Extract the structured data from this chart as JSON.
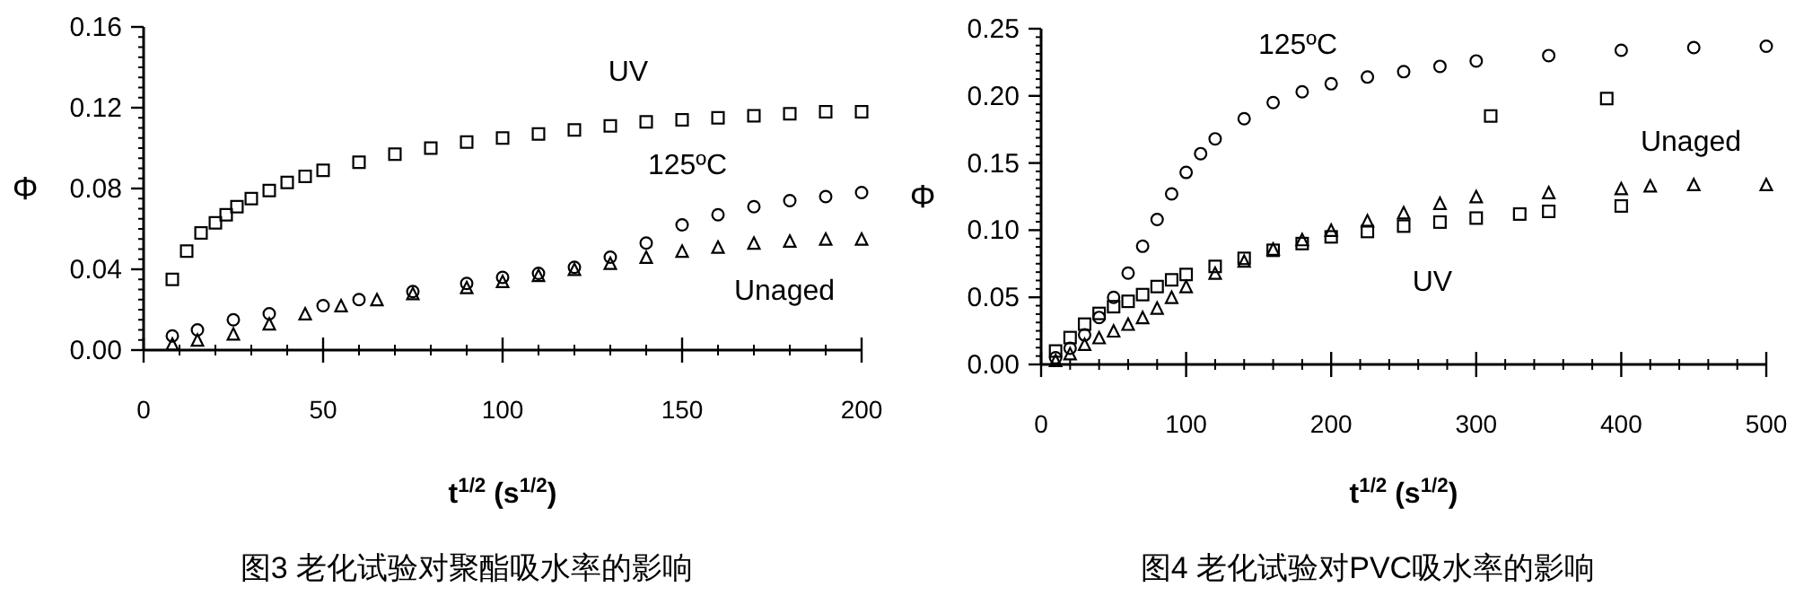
{
  "chart_data": [
    {
      "type": "scatter",
      "title": "图3 老化试验对聚酯吸水率的影响",
      "xlabel": "**t$^{1/2}$ (s$^{1/2}$)**",
      "ylabel": "Φ",
      "xlim": [
        0,
        200
      ],
      "ylim": [
        0,
        0.16
      ],
      "xticks": [
        0,
        50,
        100,
        150,
        200
      ],
      "yticks": [
        {
          "value": 0,
          "label": "0.00"
        },
        {
          "value": 0.04,
          "label": "0.04"
        },
        {
          "value": 0.08,
          "label": "0.08"
        },
        {
          "value": 0.12,
          "label": "0.12"
        },
        {
          "value": 0.16,
          "label": "0.16"
        }
      ],
      "grid": false,
      "series": [
        {
          "name": "UV",
          "color": "#000000",
          "marker": "square",
          "x": [
            8,
            12,
            16,
            20,
            23,
            26,
            30,
            35,
            40,
            45,
            50,
            60,
            70,
            80,
            90,
            100,
            110,
            120,
            130,
            140,
            150,
            160,
            170,
            180,
            190,
            200
          ],
          "values": [
            0.035,
            0.049,
            0.058,
            0.063,
            0.067,
            0.071,
            0.075,
            0.079,
            0.083,
            0.086,
            0.089,
            0.093,
            0.097,
            0.1,
            0.103,
            0.105,
            0.107,
            0.109,
            0.111,
            0.113,
            0.114,
            0.115,
            0.116,
            0.117,
            0.118,
            0.118
          ]
        },
        {
          "name": "125ºC",
          "color": "#000000",
          "marker": "circle",
          "x": [
            8,
            15,
            25,
            35,
            50,
            60,
            75,
            90,
            100,
            110,
            120,
            130,
            140,
            150,
            160,
            170,
            180,
            190,
            200
          ],
          "values": [
            0.007,
            0.01,
            0.015,
            0.018,
            0.022,
            0.025,
            0.029,
            0.033,
            0.036,
            0.038,
            0.041,
            0.046,
            0.053,
            0.062,
            0.067,
            0.071,
            0.074,
            0.076,
            0.078
          ]
        },
        {
          "name": "Unaged",
          "color": "#000000",
          "marker": "triangle",
          "x": [
            8,
            15,
            25,
            35,
            45,
            55,
            65,
            75,
            90,
            100,
            110,
            120,
            130,
            140,
            150,
            160,
            170,
            180,
            190,
            200
          ],
          "values": [
            0.003,
            0.005,
            0.008,
            0.013,
            0.018,
            0.022,
            0.025,
            0.028,
            0.031,
            0.034,
            0.037,
            0.04,
            0.043,
            0.046,
            0.049,
            0.051,
            0.053,
            0.054,
            0.055,
            0.055
          ]
        }
      ]
    },
    {
      "type": "scatter",
      "title": "图4 老化试验对PVC吸水率的影响",
      "xlabel": "**t$^{1/2}$ (s$^{1/2}$)**",
      "ylabel": "Φ",
      "xlim": [
        0,
        500
      ],
      "ylim": [
        0,
        0.25
      ],
      "xticks": [
        0,
        100,
        200,
        300,
        400,
        500
      ],
      "yticks": [
        {
          "value": 0,
          "label": "0.00"
        },
        {
          "value": 0.05,
          "label": "0.05"
        },
        {
          "value": 0.1,
          "label": "0.10"
        },
        {
          "value": 0.15,
          "label": "0.15"
        },
        {
          "value": 0.2,
          "label": "0.20"
        },
        {
          "value": 0.25,
          "label": "0.25"
        }
      ],
      "grid": false,
      "series": [
        {
          "name": "125ºC",
          "color": "#000000",
          "marker": "circle",
          "x": [
            10,
            20,
            30,
            40,
            50,
            60,
            70,
            80,
            90,
            100,
            110,
            120,
            140,
            160,
            180,
            200,
            225,
            250,
            275,
            300,
            350,
            400,
            450,
            500
          ],
          "values": [
            0.005,
            0.012,
            0.022,
            0.035,
            0.05,
            0.068,
            0.088,
            0.108,
            0.127,
            0.143,
            0.157,
            0.168,
            0.183,
            0.195,
            0.203,
            0.209,
            0.214,
            0.218,
            0.222,
            0.226,
            0.23,
            0.234,
            0.236,
            0.237
          ]
        },
        {
          "name": "Unaged",
          "color": "#000000",
          "marker": "triangle",
          "x": [
            10,
            20,
            30,
            40,
            50,
            60,
            70,
            80,
            90,
            100,
            120,
            140,
            160,
            180,
            200,
            225,
            250,
            275,
            300,
            350,
            400,
            420,
            450,
            500
          ],
          "values": [
            0.003,
            0.008,
            0.015,
            0.02,
            0.025,
            0.03,
            0.035,
            0.042,
            0.05,
            0.058,
            0.068,
            0.077,
            0.086,
            0.093,
            0.1,
            0.107,
            0.113,
            0.12,
            0.125,
            0.128,
            0.131,
            0.133,
            0.134,
            0.134
          ]
        },
        {
          "name": "UV",
          "color": "#000000",
          "marker": "square",
          "x": [
            10,
            20,
            30,
            40,
            50,
            60,
            70,
            80,
            90,
            100,
            120,
            140,
            160,
            180,
            200,
            225,
            250,
            275,
            300,
            310,
            330,
            350,
            390,
            400
          ],
          "values": [
            0.01,
            0.02,
            0.03,
            0.038,
            0.043,
            0.047,
            0.052,
            0.058,
            0.063,
            0.067,
            0.073,
            0.079,
            0.085,
            0.09,
            0.095,
            0.099,
            0.103,
            0.106,
            0.109,
            0.185,
            0.112,
            0.114,
            0.198,
            0.118
          ]
        }
      ]
    }
  ]
}
